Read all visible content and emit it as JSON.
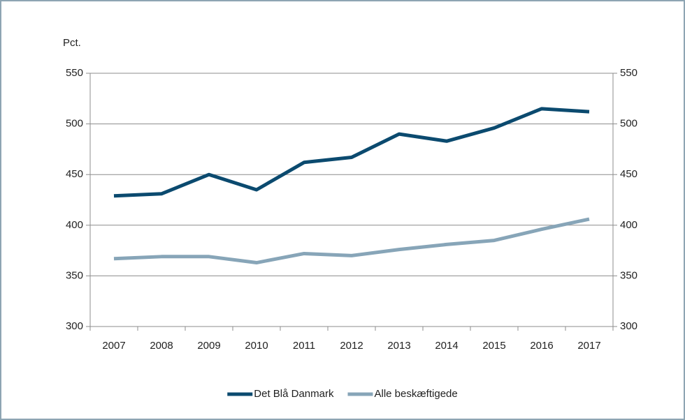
{
  "chart_data": {
    "type": "line",
    "y_label": "Pct.",
    "categories": [
      "2007",
      "2008",
      "2009",
      "2010",
      "2011",
      "2012",
      "2013",
      "2014",
      "2015",
      "2016",
      "2017"
    ],
    "series": [
      {
        "name": "Det Blå Danmark",
        "color": "#0b4a6f",
        "values": [
          429,
          431,
          450,
          435,
          462,
          467,
          490,
          483,
          496,
          515,
          512
        ]
      },
      {
        "name": "Alle beskæftigede",
        "color": "#87a5b8",
        "values": [
          367,
          369,
          369,
          363,
          372,
          370,
          376,
          381,
          385,
          396,
          406
        ]
      }
    ],
    "ylim": [
      300,
      550
    ],
    "yticks": [
      300,
      350,
      400,
      450,
      500,
      550
    ],
    "grid": true,
    "legend": "bottom"
  }
}
